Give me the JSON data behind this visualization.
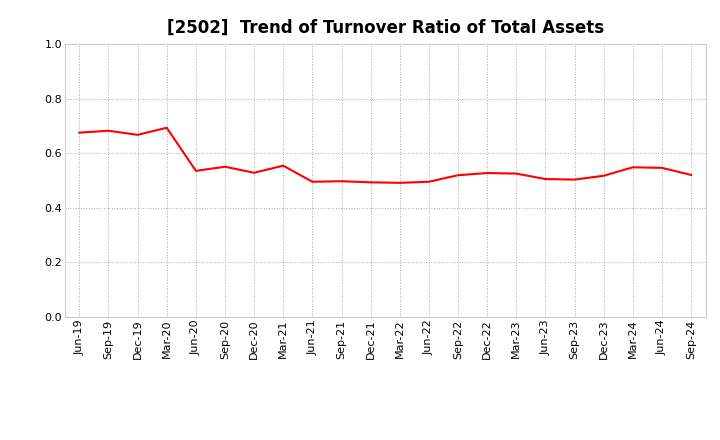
{
  "title": "[2502]  Trend of Turnover Ratio of Total Assets",
  "x_labels": [
    "Jun-19",
    "Sep-19",
    "Dec-19",
    "Mar-20",
    "Jun-20",
    "Sep-20",
    "Dec-20",
    "Mar-21",
    "Jun-21",
    "Sep-21",
    "Dec-21",
    "Mar-22",
    "Jun-22",
    "Sep-22",
    "Dec-22",
    "Mar-23",
    "Jun-23",
    "Sep-23",
    "Dec-23",
    "Mar-24",
    "Jun-24",
    "Sep-24"
  ],
  "y_values": [
    0.675,
    0.682,
    0.667,
    0.693,
    0.535,
    0.55,
    0.528,
    0.554,
    0.495,
    0.497,
    0.493,
    0.491,
    0.495,
    0.519,
    0.527,
    0.525,
    0.505,
    0.503,
    0.517,
    0.548,
    0.546,
    0.52
  ],
  "line_color": "#FF0000",
  "line_width": 1.5,
  "ylim": [
    0.0,
    1.0
  ],
  "yticks": [
    0.0,
    0.2,
    0.4,
    0.6,
    0.8,
    1.0
  ],
  "grid_color": "#aaaaaa",
  "background_color": "#ffffff",
  "title_fontsize": 12,
  "tick_fontsize": 8
}
